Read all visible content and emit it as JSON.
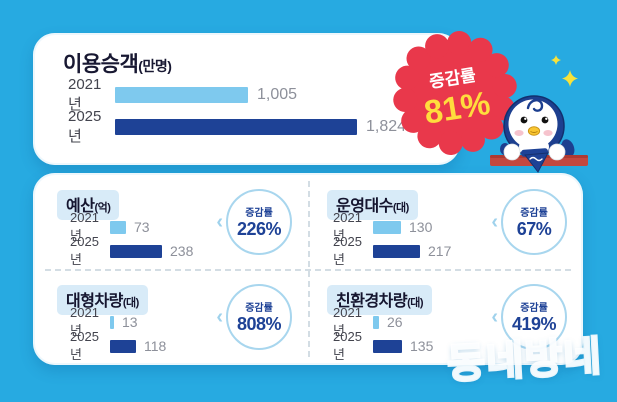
{
  "colors": {
    "background": "#27AAE1",
    "bar_2021": "#7EC9EE",
    "bar_2025": "#1E4296",
    "badge_red": "#E9384B",
    "badge_yellow": "#FFDD3D",
    "accent_navy": "#1E4296",
    "circle_border": "#A8D6EE"
  },
  "icons": {
    "chevron_left": "‹"
  },
  "watermark": "동네방네",
  "top_chart": {
    "title": "이용승객",
    "unit": "(만명)",
    "rows": [
      {
        "year": "2021년",
        "value": 1005,
        "value_label": "1,005"
      },
      {
        "year": "2025년",
        "value": 1824,
        "value_label": "1,824"
      }
    ],
    "badge": {
      "label": "증감률",
      "value": "81%"
    }
  },
  "quadrants": [
    {
      "title": "예산",
      "unit": "(억)",
      "rows": [
        {
          "year": "2021년",
          "value": 73,
          "value_label": "73"
        },
        {
          "year": "2025년",
          "value": 238,
          "value_label": "238"
        }
      ],
      "badge": {
        "label": "증감률",
        "value": "226%"
      }
    },
    {
      "title": "운영대수",
      "unit": "(대)",
      "rows": [
        {
          "year": "2021년",
          "value": 130,
          "value_label": "130"
        },
        {
          "year": "2025년",
          "value": 217,
          "value_label": "217"
        }
      ],
      "badge": {
        "label": "증감률",
        "value": "67%"
      }
    },
    {
      "title": "대형차량",
      "unit": "(대)",
      "rows": [
        {
          "year": "2021년",
          "value": 13,
          "value_label": "13"
        },
        {
          "year": "2025년",
          "value": 118,
          "value_label": "118"
        }
      ],
      "badge": {
        "label": "증감률",
        "value": "808%"
      }
    },
    {
      "title": "친환경차량",
      "unit": "(대)",
      "rows": [
        {
          "year": "2021년",
          "value": 26,
          "value_label": "26"
        },
        {
          "year": "2025년",
          "value": 135,
          "value_label": "135"
        }
      ],
      "badge": {
        "label": "증감률",
        "value": "419%"
      }
    }
  ],
  "chart_data": [
    {
      "type": "bar",
      "title": "이용승객",
      "ylabel": "만명",
      "categories": [
        "2021년",
        "2025년"
      ],
      "values": [
        1005,
        1824
      ],
      "annotations": [
        "증감률 81%"
      ]
    },
    {
      "type": "bar",
      "title": "예산",
      "ylabel": "억",
      "categories": [
        "2021년",
        "2025년"
      ],
      "values": [
        73,
        238
      ],
      "annotations": [
        "증감률 226%"
      ]
    },
    {
      "type": "bar",
      "title": "운영대수",
      "ylabel": "대",
      "categories": [
        "2021년",
        "2025년"
      ],
      "values": [
        130,
        217
      ],
      "annotations": [
        "증감률 67%"
      ]
    },
    {
      "type": "bar",
      "title": "대형차량",
      "ylabel": "대",
      "categories": [
        "2021년",
        "2025년"
      ],
      "values": [
        13,
        118
      ],
      "annotations": [
        "증감률 808%"
      ]
    },
    {
      "type": "bar",
      "title": "친환경차량",
      "ylabel": "대",
      "categories": [
        "2021년",
        "2025년"
      ],
      "values": [
        26,
        135
      ],
      "annotations": [
        "증감률 419%"
      ]
    }
  ]
}
